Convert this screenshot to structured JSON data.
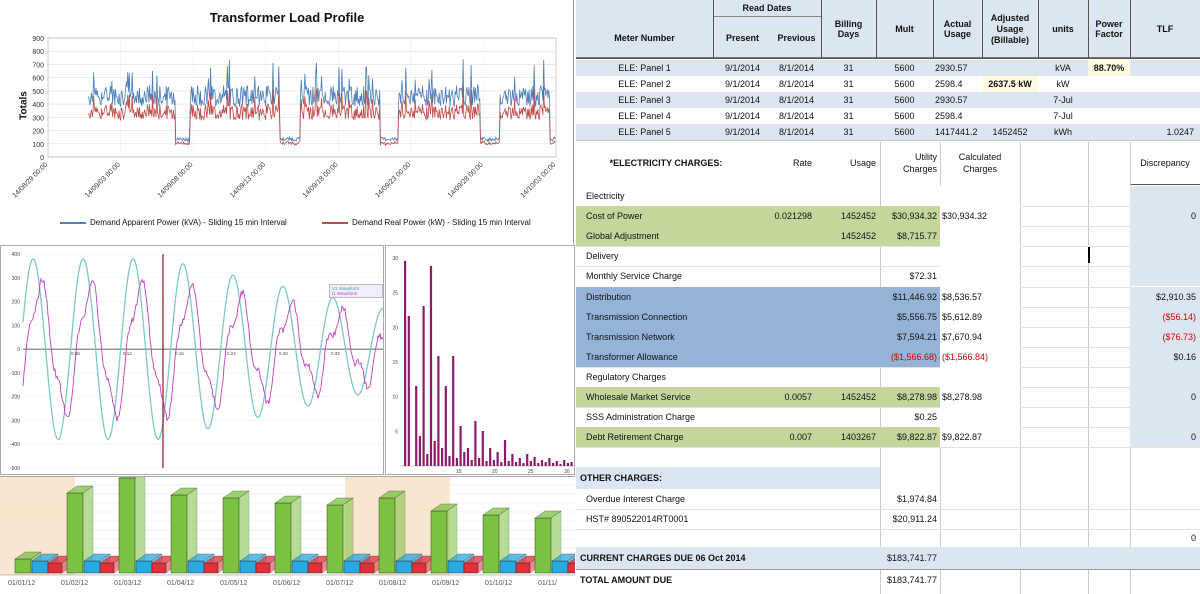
{
  "load_chart": {
    "title": "Transformer Load Profile",
    "ylabel": "Totals",
    "yticks": [
      "0",
      "100",
      "200",
      "300",
      "400",
      "500",
      "600",
      "700",
      "800",
      "900"
    ],
    "xticks": [
      "14/08/29 00:00",
      "14/09/03 00:00",
      "14/09/08 00:00",
      "14/09/13 00:00",
      "14/09/18 00:00",
      "14/09/23 00:00",
      "14/09/28 00:00",
      "14/10/03 00:00"
    ],
    "legend": [
      "Demand Apparent Power (kVA) - Sliding 15 min Interval",
      "Demand Real Power (kW) - Sliding 15 min Interval"
    ],
    "colors": {
      "apparent": "#4a7ebb",
      "real": "#be4b48"
    }
  },
  "waveform": {
    "yticks": [
      "400",
      "300",
      "200",
      "100",
      "0",
      "-100",
      "-200",
      "-300",
      "-400",
      "-500"
    ],
    "xticks": [
      "0.08",
      "0.12",
      "0.16",
      "0.24",
      "0.28",
      "0.32"
    ],
    "legend": [
      "V1 Waveform",
      "I1 Waveform"
    ],
    "colors": {
      "v": "#7fc8c8",
      "i": "#c040c0"
    }
  },
  "harmonics": {
    "yticks": [
      "30",
      "25",
      "20",
      "15",
      "10",
      "5"
    ],
    "xticks": [
      "15",
      "20",
      "25",
      "30"
    ],
    "color": "#8b1a6b"
  },
  "bars3d": {
    "xticks": [
      "01/01/12",
      "01/02/12",
      "01/03/12",
      "01/04/12",
      "01/05/12",
      "01/06/12",
      "01/07/12",
      "01/08/12",
      "01/09/12",
      "01/10/12",
      "01/11/"
    ],
    "colors": {
      "green": "#7cc242",
      "blue": "#2aa8e0",
      "red": "#e0303a"
    }
  },
  "sheet": {
    "header": {
      "read_dates": "Read Dates",
      "meter_number": "Meter Number",
      "present": "Present",
      "previous": "Previous",
      "billing_days": "Billing Days",
      "mult": "Mult",
      "actual_usage": "Actual Usage",
      "adjusted_usage": "Adjusted Usage (Billable)",
      "units": "units",
      "power_factor": "Power Factor",
      "tlf": "TLF"
    },
    "meters": [
      {
        "name": "ELE: Panel 1",
        "present": "9/1/2014",
        "previous": "8/1/2014",
        "days": "31",
        "mult": "5600",
        "actual": "2930.57",
        "adjusted": "",
        "units": "kVA",
        "pf": "88.70%",
        "tlf": ""
      },
      {
        "name": "ELE: Panel 2",
        "present": "9/1/2014",
        "previous": "8/1/2014",
        "days": "31",
        "mult": "5600",
        "actual": "2598.4",
        "adjusted": "2637.5  kW",
        "units": "kW",
        "pf": "",
        "tlf": ""
      },
      {
        "name": "ELE: Panel 3",
        "present": "9/1/2014",
        "previous": "8/1/2014",
        "days": "31",
        "mult": "5600",
        "actual": "2930.57",
        "adjusted": "",
        "units": "7-Jul",
        "pf": "",
        "tlf": ""
      },
      {
        "name": "ELE: Panel 4",
        "present": "9/1/2014",
        "previous": "8/1/2014",
        "days": "31",
        "mult": "5600",
        "actual": "2598.4",
        "adjusted": "",
        "units": "7-Jul",
        "pf": "",
        "tlf": ""
      },
      {
        "name": "ELE: Panel 5",
        "present": "9/1/2014",
        "previous": "8/1/2014",
        "days": "31",
        "mult": "5600",
        "actual": "1417441.2",
        "adjusted": "1452452",
        "units": "kWh",
        "pf": "",
        "tlf": "1.0247"
      }
    ],
    "charges_header": {
      "title": "*ELECTRICITY CHARGES:",
      "rate": "Rate",
      "usage": "Usage",
      "utility": "Utility Charges",
      "calculated": "Calculated Charges",
      "discrepancy": "Discrepancy"
    },
    "rows": [
      {
        "label": "Electricity",
        "rate": "",
        "usage": "",
        "utility": "",
        "calc": "",
        "disc": "",
        "style": "plain"
      },
      {
        "label": "Cost of Power",
        "rate": "0.021298",
        "usage": "1452452",
        "utility": "$30,934.32",
        "calc": "$30,934.32",
        "disc": "0",
        "style": "green"
      },
      {
        "label": "Global Adjustment",
        "rate": "",
        "usage": "1452452",
        "utility": "$8,715.77",
        "calc": "",
        "disc": "",
        "style": "green"
      },
      {
        "label": "Delivery",
        "rate": "",
        "usage": "",
        "utility": "",
        "calc": "",
        "disc": "",
        "style": "plain"
      },
      {
        "label": "Monthly Service Charge",
        "rate": "",
        "usage": "",
        "utility": "$72.31",
        "calc": "",
        "disc": "",
        "style": "plain"
      },
      {
        "label": "Distribution",
        "rate": "",
        "usage": "",
        "utility": "$11,446.92",
        "calc": "$8,536.57",
        "disc": "$2,910.35",
        "style": "blue"
      },
      {
        "label": "Transmission Connection",
        "rate": "",
        "usage": "",
        "utility": "$5,556.75",
        "calc": "$5,612.89",
        "disc": "($56.14)",
        "style": "blue"
      },
      {
        "label": "Transmission Network",
        "rate": "",
        "usage": "",
        "utility": "$7,594.21",
        "calc": "$7,670.94",
        "disc": "($76.73)",
        "style": "blue"
      },
      {
        "label": "Transformer Allowance",
        "rate": "",
        "usage": "",
        "utility": "($1,566.68)",
        "calc": "($1,566.84)",
        "disc": "$0.16",
        "style": "blue"
      },
      {
        "label": "Regulatory Charges",
        "rate": "",
        "usage": "",
        "utility": "",
        "calc": "",
        "disc": "",
        "style": "plain"
      },
      {
        "label": "Wholesale Market Service",
        "rate": "0.0057",
        "usage": "1452452",
        "utility": "$8,278.98",
        "calc": "$8,278.98",
        "disc": "0",
        "style": "green"
      },
      {
        "label": "SSS Administration Charge",
        "rate": "",
        "usage": "",
        "utility": "$0.25",
        "calc": "",
        "disc": "",
        "style": "plain"
      },
      {
        "label": "Debt Retirement Charge",
        "rate": "0.007",
        "usage": "1403267",
        "utility": "$9,822.87",
        "calc": "$9,822.87",
        "disc": "0",
        "style": "green"
      }
    ],
    "other_title": "OTHER CHARGES:",
    "other_rows": [
      {
        "label": "Overdue Interest Charge",
        "utility": "$1,974.84"
      },
      {
        "label": "HST# 890522014RT0001",
        "utility": "$20,911.24"
      }
    ],
    "extra_zero": "0",
    "current_label": "CURRENT CHARGES DUE 06 Oct 2014",
    "current_value": "$183,741.77",
    "total_label": "TOTAL AMOUNT DUE",
    "total_value": "$183,741.77",
    "colors": {
      "header": "#dce6f1",
      "green": "#c3d69b",
      "blue": "#95b3d7",
      "lightblue": "#dce6f1",
      "red": "#d40000"
    }
  }
}
